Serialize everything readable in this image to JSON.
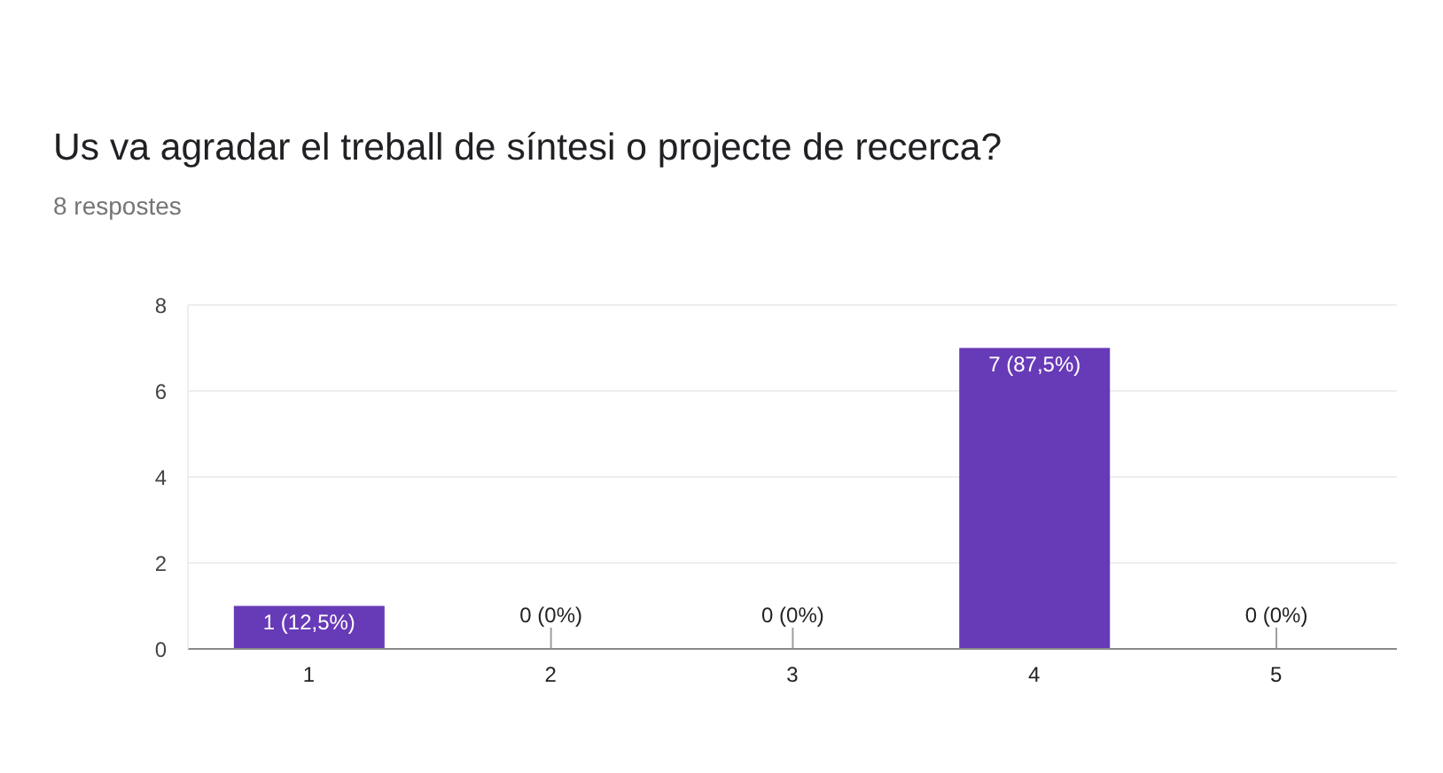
{
  "chart_data": {
    "type": "bar",
    "title": "Us va agradar el treball de síntesi o projecte de recerca?",
    "subtitle": "8 respostes",
    "categories": [
      "1",
      "2",
      "3",
      "4",
      "5"
    ],
    "values": [
      1,
      0,
      0,
      7,
      0
    ],
    "color": "#673ab7",
    "value_labels": [
      "1 (12,5%)",
      "0 (0%)",
      "0 (0%)",
      "7 (87,5%)",
      "0 (0%)"
    ],
    "ylim": [
      0,
      8
    ],
    "yticks": [
      0,
      2,
      4,
      6,
      8
    ],
    "grid": "y"
  }
}
